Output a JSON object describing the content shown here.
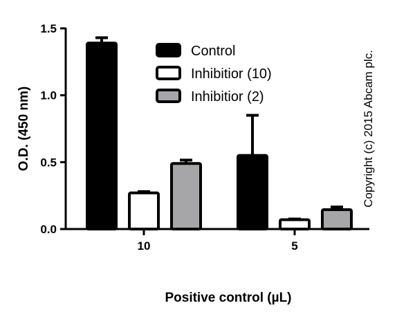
{
  "chart_data": {
    "type": "bar",
    "title": "",
    "xlabel": "Positive control (µL)",
    "ylabel": "O.D. (450 nm)",
    "ylim": [
      0,
      1.5
    ],
    "yticks": [
      "0.0",
      "0.5",
      "1.0",
      "1.5"
    ],
    "categories": [
      "10",
      "5"
    ],
    "series": [
      {
        "name": "Control",
        "values": [
          1.39,
          0.55
        ],
        "errors": [
          0.04,
          0.3
        ],
        "color": "#000000"
      },
      {
        "name": "Inhibitior (10)",
        "values": [
          0.27,
          0.07
        ],
        "errors": [
          0.01,
          0.005
        ],
        "color": "#ffffff"
      },
      {
        "name": "Inhibitior (2)",
        "values": [
          0.49,
          0.145
        ],
        "errors": [
          0.025,
          0.02
        ],
        "color": "#a6a6a8"
      }
    ],
    "legend_position": "top-right",
    "grid": false
  },
  "copyright": "Copyright (c) 2015 Abcam plc."
}
